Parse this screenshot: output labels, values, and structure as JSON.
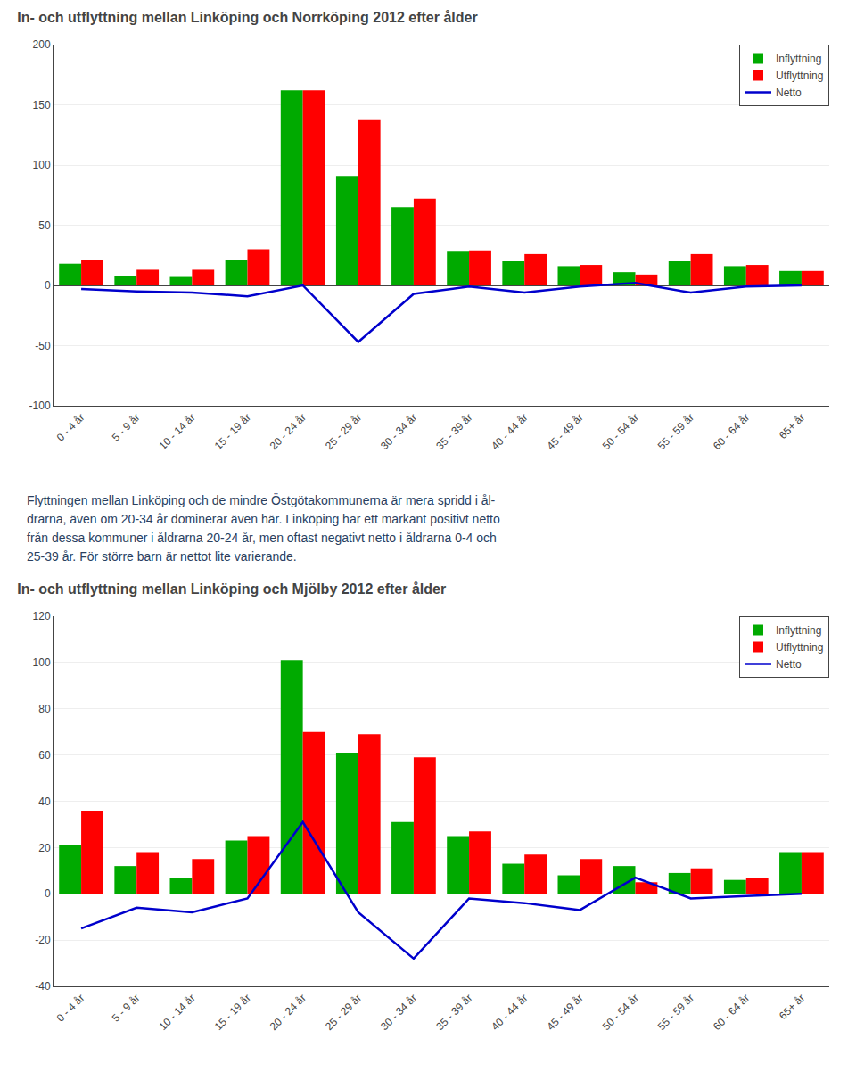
{
  "chart_data": [
    {
      "type": "bar",
      "title": "In- och utflyttning mellan Linköping och Norrköping 2012 efter ålder",
      "categories": [
        "0 - 4 år",
        "5 - 9 år",
        "10 - 14 år",
        "15 - 19 år",
        "20 - 24 år",
        "25 - 29 år",
        "30 - 34 år",
        "35 - 39 år",
        "40 - 44 år",
        "45 - 49 år",
        "50 - 54 år",
        "55 - 59 år",
        "60 - 64 år",
        "65+ år"
      ],
      "series": [
        {
          "name": "Inflyttning",
          "type": "bar",
          "color": "#00AA00",
          "values": [
            18,
            8,
            7,
            21,
            162,
            91,
            65,
            28,
            20,
            16,
            11,
            20,
            16,
            12
          ]
        },
        {
          "name": "Utflyttning",
          "type": "bar",
          "color": "#FF0000",
          "values": [
            21,
            13,
            13,
            30,
            162,
            138,
            72,
            29,
            26,
            17,
            9,
            26,
            17,
            12
          ]
        },
        {
          "name": "Netto",
          "type": "line",
          "color": "#0000CC",
          "values": [
            -3,
            -5,
            -6,
            -9,
            0,
            -47,
            -7,
            -1,
            -6,
            -1,
            2,
            -6,
            -1,
            0
          ]
        }
      ],
      "ylim": [
        -100,
        200
      ],
      "yticks": [
        -100,
        -50,
        0,
        50,
        100,
        150,
        200
      ],
      "grid": true,
      "legend": "upper right",
      "annotations": [
        "Flyttningen mellan Linköping och de mindre Östgötakommunerna är mera spridd i ål-",
        "drarna, även om 20-34 år dominerar även här. Linköping har ett markant positivt netto",
        "från dessa kommuner i åldrarna 20-24 år, men oftast negativt netto i åldrarna 0-4 och",
        "25-39 år. För större barn är nettot lite varierande."
      ]
    },
    {
      "type": "bar",
      "title": "In- och utflyttning mellan Linköping och Mjölby 2012 efter ålder",
      "categories": [
        "0 - 4 år",
        "5 - 9 år",
        "10 - 14 år",
        "15 - 19 år",
        "20 - 24 år",
        "25 - 29 år",
        "30 - 34 år",
        "35 - 39 år",
        "40 - 44 år",
        "45 - 49 år",
        "50 - 54 år",
        "55 - 59 år",
        "60 - 64 år",
        "65+ år"
      ],
      "series": [
        {
          "name": "Inflyttning",
          "type": "bar",
          "color": "#00AA00",
          "values": [
            21,
            12,
            7,
            23,
            101,
            61,
            31,
            25,
            13,
            8,
            12,
            9,
            6,
            18
          ]
        },
        {
          "name": "Utflyttning",
          "type": "bar",
          "color": "#FF0000",
          "values": [
            36,
            18,
            15,
            25,
            70,
            69,
            59,
            27,
            17,
            15,
            5,
            11,
            7,
            18
          ]
        },
        {
          "name": "Netto",
          "type": "line",
          "color": "#0000CC",
          "values": [
            -15,
            -6,
            -8,
            -2,
            31,
            -8,
            -28,
            -2,
            -4,
            -7,
            7,
            -2,
            -1,
            0
          ]
        }
      ],
      "ylim": [
        -40,
        120
      ],
      "yticks": [
        -40,
        -20,
        0,
        20,
        40,
        60,
        80,
        100,
        120
      ],
      "grid": true,
      "legend": "upper right"
    }
  ]
}
